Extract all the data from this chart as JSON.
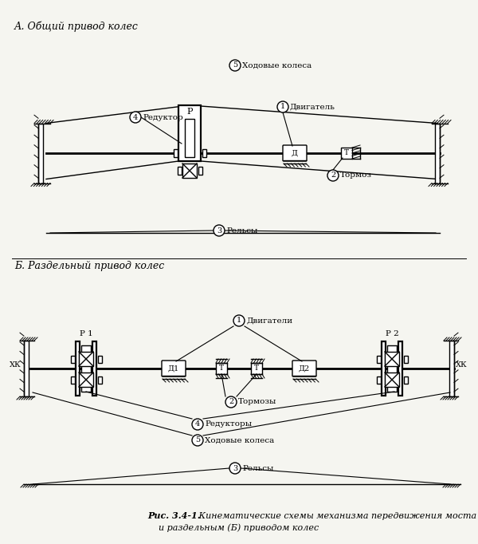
{
  "title_a": "А. Общий привод колес",
  "title_b": "Б. Раздельный привод колес",
  "caption_bold": "Рис. 3.4-1.",
  "caption_normal": " Кинематические схемы механизма передвижения моста с общим (А)\n и раздельным (Б) приводом колес",
  "bg_color": "#f5f5f0",
  "lw": 1.0,
  "lw2": 1.6
}
